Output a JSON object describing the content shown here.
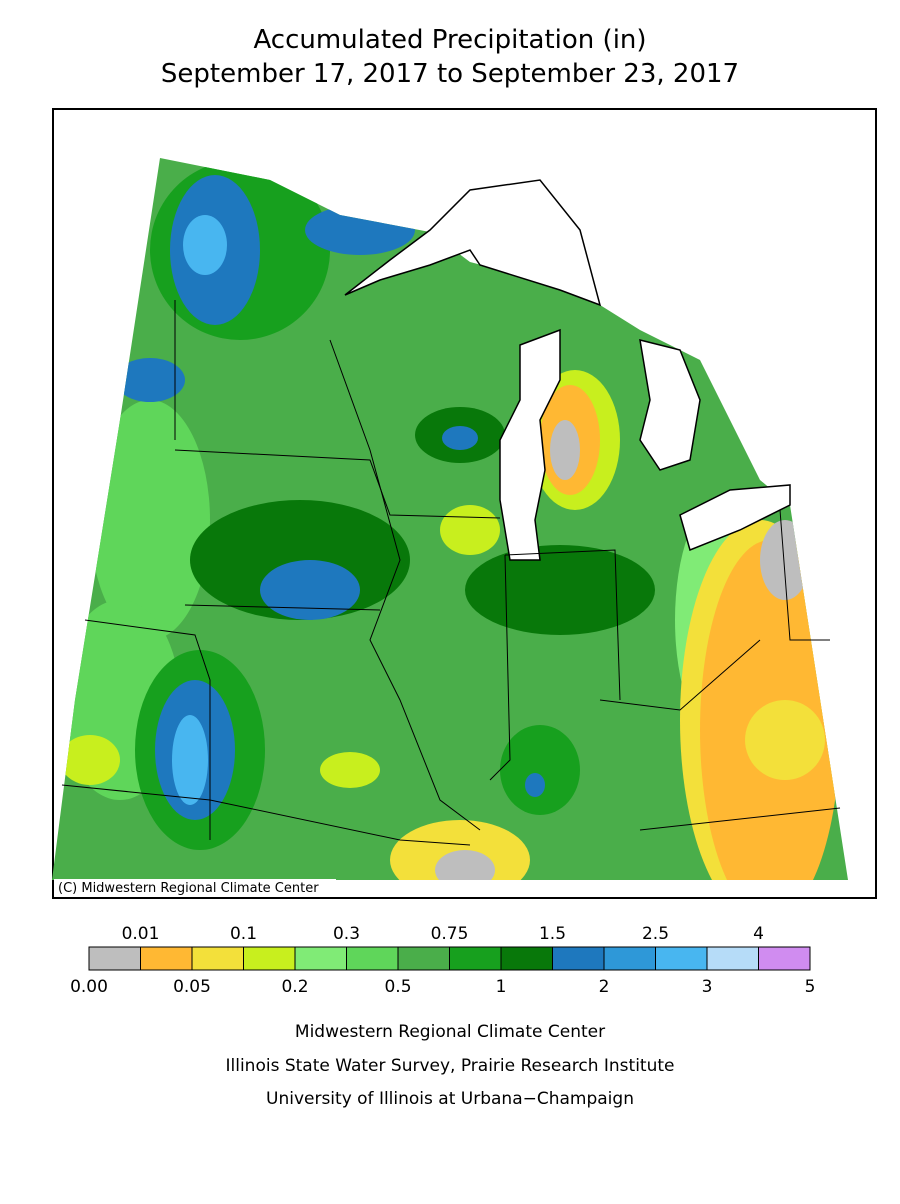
{
  "title": [
    "Accumulated Precipitation (in)",
    "September 17, 2017 to September 23, 2017"
  ],
  "map": {
    "credit": "(C) Midwestern Regional Climate Center"
  },
  "legend": {
    "labels": [
      "0.00",
      "0.01",
      "0.05",
      "0.1",
      "0.2",
      "0.3",
      "0.5",
      "0.75",
      "1",
      "1.5",
      "2",
      "2.5",
      "3",
      "4",
      "5"
    ],
    "colors": [
      "#bebebe",
      "#ffb833",
      "#f3e03a",
      "#c8ef1e",
      "#80eb76",
      "#5fd65a",
      "#4aae4a",
      "#17a01e",
      "#08780a",
      "#1e78be",
      "#2e98d8",
      "#48b6f0",
      "#b6dcf8",
      "#d08cf0"
    ]
  },
  "footer": [
    "Midwestern Regional Climate Center",
    "Illinois State Water Survey, Prairie Research Institute",
    "University of Illinois at Urbana−Champaign"
  ]
}
